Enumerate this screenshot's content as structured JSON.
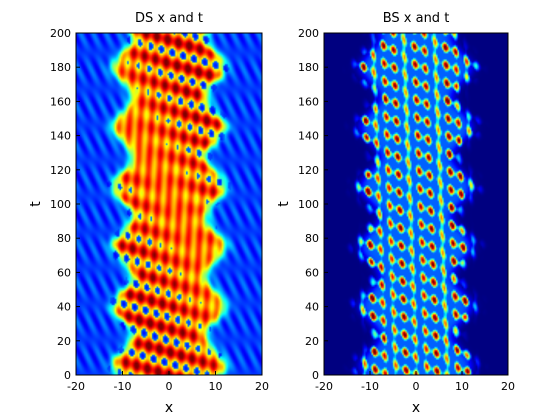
{
  "chart_data": [
    {
      "type": "heatmap",
      "title": "DS x and t",
      "xlabel": "x",
      "ylabel": "t",
      "xlim": [
        -20,
        20
      ],
      "ylim": [
        0,
        200
      ],
      "xticks": [
        -20,
        -10,
        0,
        10,
        20
      ],
      "yticks": [
        0,
        20,
        40,
        60,
        80,
        100,
        120,
        140,
        160,
        180,
        200
      ],
      "colormap": "jet",
      "grid": false,
      "band": {
        "description": "high-intensity breathing band centered near x = 0",
        "half_width_min": 8,
        "half_width_max": 12,
        "peak_level": 0.95,
        "background_level": 0.18
      }
    },
    {
      "type": "heatmap",
      "title": "BS x and t",
      "xlabel": "x",
      "ylabel": "t",
      "xlim": [
        -20,
        20
      ],
      "ylim": [
        0,
        200
      ],
      "xticks": [
        -20,
        -10,
        0,
        10,
        20
      ],
      "yticks": [
        0,
        20,
        40,
        60,
        80,
        100,
        120,
        140,
        160,
        180,
        200
      ],
      "colormap": "jet",
      "grid": false,
      "band": {
        "description": "sparse cellular filaments within |x| < 12, dark blue background",
        "half_width_min": 8,
        "half_width_max": 12,
        "peak_level": 0.7,
        "background_level": 0.0
      }
    }
  ],
  "colors": {
    "axis": "#000000",
    "background": "#ffffff"
  }
}
